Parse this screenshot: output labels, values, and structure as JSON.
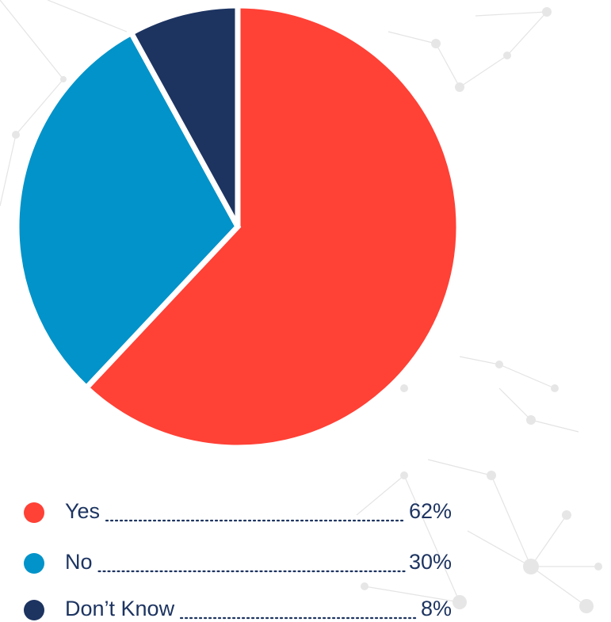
{
  "chart_data": {
    "type": "pie",
    "categories": [
      "Yes",
      "No",
      "Don’t Know"
    ],
    "values": [
      62,
      30,
      8
    ],
    "value_labels": [
      "62%",
      "30%",
      "8%"
    ],
    "colors": [
      "#ff4136",
      "#0193c9",
      "#1d3461"
    ]
  }
}
